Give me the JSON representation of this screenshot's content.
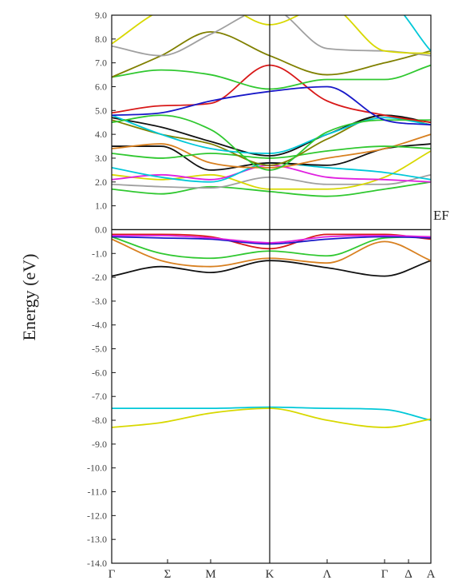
{
  "chart_data": {
    "type": "line",
    "ylabel": "Energy (eV)",
    "ylim": [
      -14,
      9
    ],
    "yticks": [
      9,
      8,
      7,
      6,
      5,
      4,
      3,
      2,
      1,
      0,
      -1,
      -2,
      -3,
      -4,
      -5,
      -6,
      -7,
      -8,
      -9,
      -10,
      -11,
      -12,
      -13,
      -14
    ],
    "ytick_labels": [
      "9.0",
      "8.0",
      "7.0",
      "6.0",
      "5.0",
      "4.0",
      "3.0",
      "2.0",
      "1.0",
      "0.0",
      "-1.0",
      "-2.0",
      "-3.0",
      "-4.0",
      "-5.0",
      "-6.0",
      "-7.0",
      "-8.0",
      "-9.0",
      "-10.0",
      "-11.0",
      "-12.0",
      "-13.0",
      "-14.0"
    ],
    "xlim": [
      0,
      1
    ],
    "kpoints": [
      {
        "label": "Γ",
        "x": 0.0
      },
      {
        "label": "Σ",
        "x": 0.175
      },
      {
        "label": "M",
        "x": 0.31
      },
      {
        "label": "K",
        "x": 0.495
      },
      {
        "label": "Λ",
        "x": 0.675
      },
      {
        "label": "Γ",
        "x": 0.855
      },
      {
        "label": "Δ",
        "x": 0.93
      },
      {
        "label": "A",
        "x": 1.0
      }
    ],
    "vertical_lines": [
      0.495
    ],
    "fermi_label": "EF",
    "fermi_level": 0,
    "grid": false,
    "x_nodes": [
      0,
      0.155,
      0.31,
      0.495,
      0.675,
      0.855,
      1.0
    ],
    "series": [
      {
        "color": "#00c8d8",
        "values": [
          -7.5,
          -7.5,
          -7.5,
          -7.45,
          -7.5,
          -7.55,
          -8.0
        ]
      },
      {
        "color": "#d8d800",
        "values": [
          -8.3,
          -8.1,
          -7.7,
          -7.5,
          -8.0,
          -8.3,
          -7.95
        ]
      },
      {
        "color": "#111111",
        "values": [
          -1.95,
          -1.55,
          -1.8,
          -1.3,
          -1.6,
          -1.95,
          -1.3
        ]
      },
      {
        "color": "#d88020",
        "values": [
          -0.4,
          -1.3,
          -1.55,
          -1.2,
          -1.4,
          -0.5,
          -1.3
        ]
      },
      {
        "color": "#30c830",
        "values": [
          -0.3,
          -1.0,
          -1.2,
          -0.9,
          -1.1,
          -0.35,
          -0.3
        ]
      },
      {
        "color": "#d81818",
        "values": [
          -0.2,
          -0.2,
          -0.3,
          -0.8,
          -0.2,
          -0.2,
          -0.4
        ]
      },
      {
        "color": "#1818c8",
        "values": [
          -0.3,
          -0.35,
          -0.4,
          -0.6,
          -0.4,
          -0.3,
          -0.35
        ]
      },
      {
        "color": "#e020e0",
        "values": [
          -0.25,
          -0.25,
          -0.35,
          -0.55,
          -0.3,
          -0.25,
          -0.3
        ]
      },
      {
        "color": "#30c830",
        "values": [
          1.7,
          1.5,
          1.8,
          1.6,
          1.4,
          1.7,
          2.0
        ]
      },
      {
        "color": "#a0a0a0",
        "values": [
          1.9,
          1.8,
          1.75,
          2.2,
          1.9,
          1.9,
          2.3
        ]
      },
      {
        "color": "#d8d800",
        "values": [
          2.3,
          2.1,
          2.3,
          1.7,
          1.7,
          2.2,
          3.3
        ]
      },
      {
        "color": "#e020e0",
        "values": [
          2.1,
          2.3,
          2.1,
          2.7,
          2.2,
          2.1,
          2.0
        ]
      },
      {
        "color": "#00c8d8",
        "values": [
          2.6,
          2.2,
          2.0,
          2.8,
          2.6,
          2.4,
          2.1
        ]
      },
      {
        "color": "#111111",
        "values": [
          3.5,
          3.5,
          2.5,
          2.8,
          2.7,
          3.4,
          3.6
        ]
      },
      {
        "color": "#d88020",
        "values": [
          3.4,
          3.6,
          2.8,
          2.6,
          3.0,
          3.4,
          4.0
        ]
      },
      {
        "color": "#30c830",
        "values": [
          3.2,
          3.0,
          3.2,
          3.0,
          3.3,
          3.5,
          3.4
        ]
      },
      {
        "color": "#808000",
        "values": [
          4.6,
          4.0,
          3.6,
          2.7,
          3.8,
          4.8,
          4.4
        ]
      },
      {
        "color": "#111111",
        "values": [
          4.7,
          4.3,
          3.7,
          3.1,
          4.0,
          4.8,
          4.5
        ]
      },
      {
        "color": "#00c8d8",
        "values": [
          4.8,
          4.0,
          3.4,
          3.2,
          4.0,
          4.7,
          4.4
        ]
      },
      {
        "color": "#30c830",
        "values": [
          4.5,
          4.8,
          4.2,
          2.5,
          4.1,
          4.6,
          4.6
        ]
      },
      {
        "color": "#d81818",
        "values": [
          4.9,
          5.2,
          5.3,
          6.9,
          5.4,
          4.8,
          4.5
        ]
      },
      {
        "color": "#1818c8",
        "values": [
          4.8,
          4.9,
          5.4,
          5.8,
          6.0,
          4.6,
          4.4
        ]
      },
      {
        "color": "#30c830",
        "values": [
          6.4,
          6.7,
          6.5,
          5.9,
          6.3,
          6.3,
          6.9
        ]
      },
      {
        "color": "#808000",
        "values": [
          6.4,
          7.3,
          8.3,
          7.3,
          6.5,
          7.0,
          7.5
        ]
      },
      {
        "color": "#a0a0a0",
        "values": [
          7.7,
          7.3,
          8.2,
          9.3,
          7.6,
          7.5,
          7.3
        ]
      },
      {
        "color": "#d8d800",
        "values": [
          7.8,
          9.2,
          9.6,
          8.6,
          9.4,
          7.5,
          7.4
        ]
      },
      {
        "color": "#00c8d8",
        "values": [
          9.7,
          9.7,
          9.7,
          9.6,
          9.6,
          9.6,
          7.5
        ]
      }
    ]
  }
}
